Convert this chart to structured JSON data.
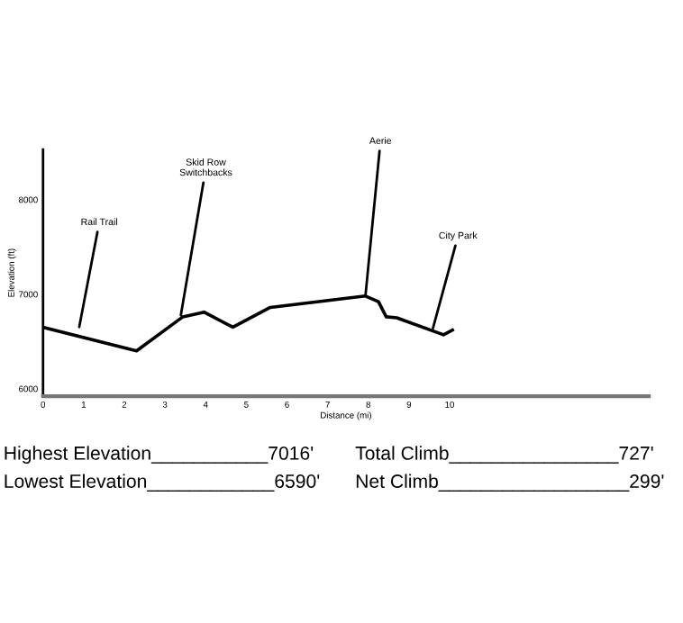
{
  "chart_data": {
    "type": "line",
    "xlabel": "Distance (mi)",
    "ylabel": "Elevation (ft)",
    "x": [
      0,
      2.3,
      3.44,
      3.96,
      4.67,
      5.59,
      7.93,
      8.25,
      8.44,
      8.7,
      9.85,
      10.07
    ],
    "series": [
      {
        "color": "#000000",
        "values": [
          6650,
          6400,
          6760,
          6810,
          6650,
          6860,
          6980,
          6920,
          6760,
          6750,
          6570,
          6620
        ]
      }
    ],
    "xlim": [
      0,
      14.9
    ],
    "xticks": [
      0,
      1,
      2,
      3,
      4,
      5,
      6,
      7,
      8,
      9,
      10
    ],
    "ylim": [
      5920,
      8530
    ],
    "yticks": [
      6000,
      7000,
      8000
    ],
    "grid": false,
    "marker": "none",
    "line_style": "solid",
    "annotations": [
      {
        "text": "Rail Trail",
        "x": 0.89,
        "y": 6652
      },
      {
        "text": "Skid Row\nSwitchbacks",
        "x": 3.39,
        "y": 6778
      },
      {
        "text": "Aerie",
        "x": 7.93,
        "y": 6981
      },
      {
        "text": "City Park",
        "x": 9.59,
        "y": 6640
      },
      "Highest Elevation___________7016'",
      "Lowest Elevation____________6590'",
      "Total Climb________________727'",
      "Net Climb__________________299'"
    ]
  }
}
